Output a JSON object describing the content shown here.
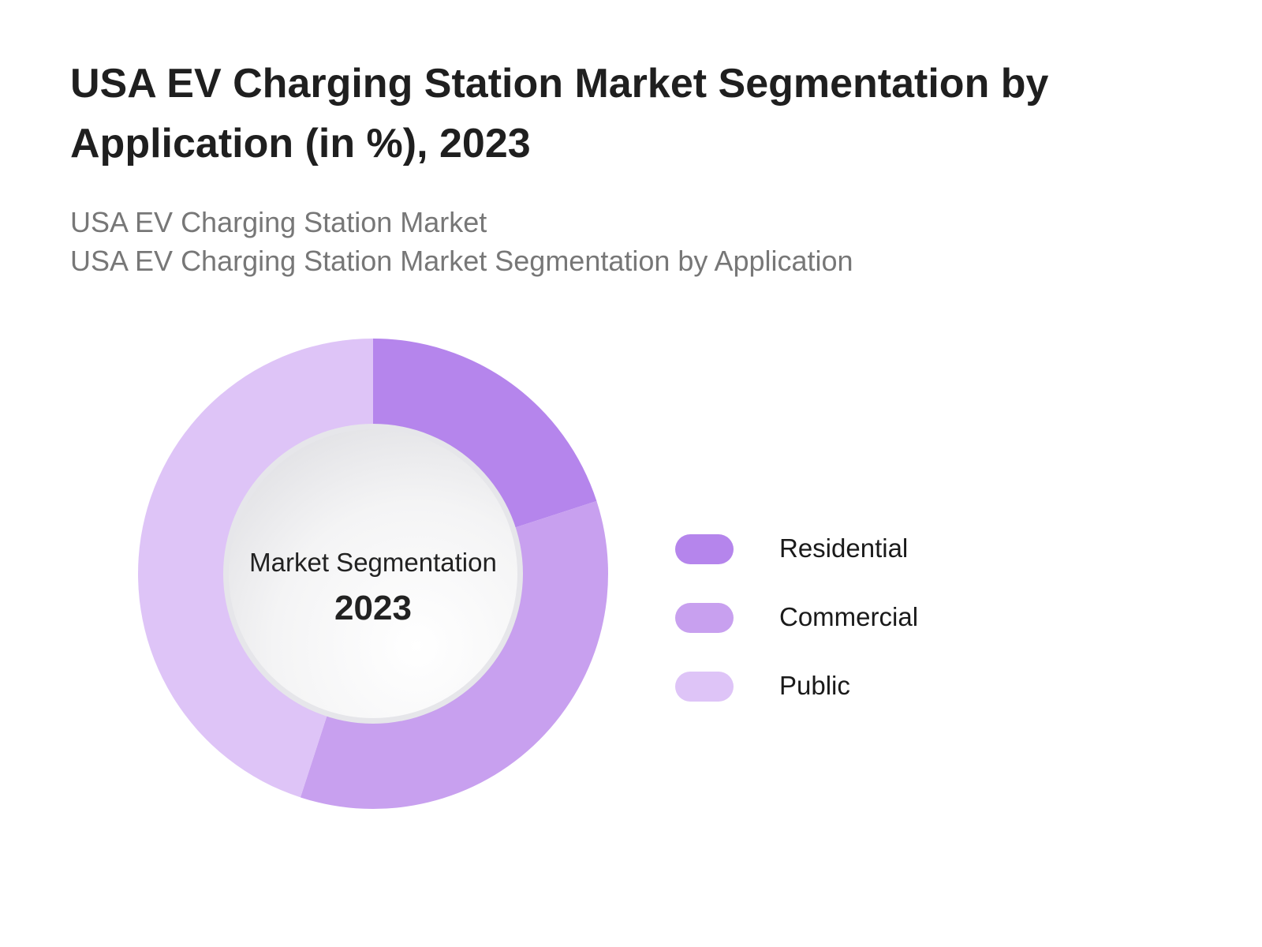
{
  "title": "USA EV Charging Station Market Segmentation by Application (in %), 2023",
  "subtitle_1": "USA EV Charging Station Market",
  "subtitle_2": "USA EV Charging Station Market Segmentation by Application",
  "center": {
    "line1": "Market Segmentation",
    "line2": "2023"
  },
  "chart_data": {
    "type": "pie",
    "variant": "donut",
    "title": "USA EV Charging Station Market Segmentation by Application (in %), 2023",
    "categories": [
      "Residential",
      "Commercial",
      "Public"
    ],
    "values": [
      20,
      35,
      45
    ],
    "colors": [
      "#b585ec",
      "#c8a0ef",
      "#dec4f7"
    ],
    "legend_position": "right"
  }
}
